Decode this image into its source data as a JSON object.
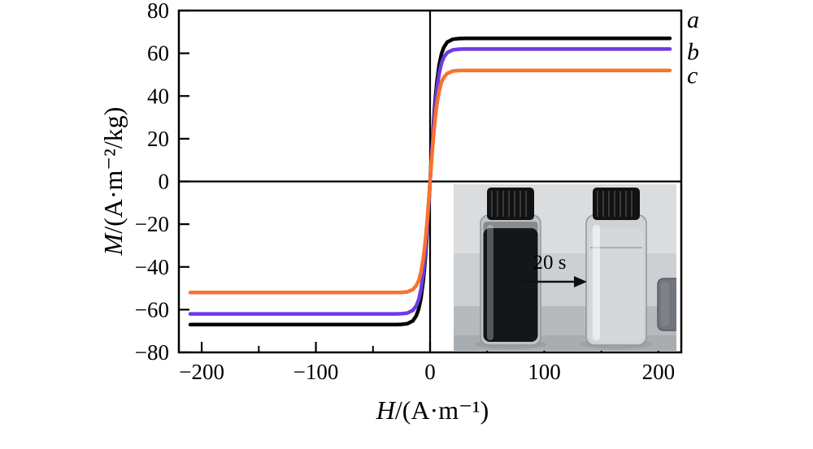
{
  "chart_data": {
    "type": "line",
    "title": "",
    "xlabel_var": "H",
    "xlabel_rest": "/(A·m⁻¹)",
    "ylabel_var": "M",
    "ylabel_rest": "/(A·m⁻²/kg)",
    "xlim": [
      -220,
      220
    ],
    "ylim": [
      -80,
      80
    ],
    "x_ticks": [
      -200,
      -100,
      0,
      100,
      200
    ],
    "x_minor_ticks": [
      -150,
      -50,
      50,
      150
    ],
    "y_ticks": [
      -80,
      -60,
      -40,
      -20,
      0,
      20,
      40,
      60,
      80
    ],
    "grid": false,
    "axis_color": "#000000",
    "x": [
      -210,
      -150,
      -100,
      -75,
      -50,
      -40,
      -30,
      -25,
      -20,
      -15,
      -12,
      -10,
      -8,
      -6,
      -5,
      -4,
      -3,
      -2,
      -1,
      0,
      1,
      2,
      3,
      4,
      5,
      6,
      8,
      10,
      12,
      15,
      20,
      25,
      30,
      40,
      50,
      75,
      100,
      150,
      210
    ],
    "series": [
      {
        "name": "a",
        "label": "a",
        "color": "#000000",
        "saturation_magnetization": 67,
        "values": [
          -67,
          -67,
          -67,
          -67,
          -67,
          -67,
          -67,
          -66.9,
          -66.6,
          -65.2,
          -62.8,
          -59.7,
          -54.6,
          -46.5,
          -41.1,
          -34.6,
          -27.1,
          -18.6,
          -9.5,
          0,
          9.5,
          18.6,
          27.1,
          34.6,
          41.1,
          46.5,
          54.6,
          59.7,
          62.8,
          65.2,
          66.6,
          66.9,
          67,
          67,
          67,
          67,
          67,
          67,
          67
        ]
      },
      {
        "name": "b",
        "label": "b",
        "color": "#6d3ae3",
        "saturation_magnetization": 62,
        "values": [
          -62,
          -62,
          -62,
          -62,
          -62,
          -62,
          -62,
          -61.9,
          -61.6,
          -60.3,
          -58.1,
          -55.3,
          -50.6,
          -43.1,
          -38,
          -32,
          -25,
          -17.3,
          -8.8,
          0,
          8.8,
          17.3,
          25,
          32,
          38,
          43.1,
          50.6,
          55.3,
          58.1,
          60.3,
          61.6,
          61.9,
          62,
          62,
          62,
          62,
          62,
          62,
          62
        ]
      },
      {
        "name": "c",
        "label": "c",
        "color": "#f9722e",
        "saturation_magnetization": 52,
        "values": [
          -52,
          -52,
          -52,
          -52,
          -52,
          -52,
          -52,
          -51.9,
          -51.7,
          -50.6,
          -48.7,
          -46.4,
          -42.4,
          -36.1,
          -31.9,
          -26.9,
          -21,
          -14.5,
          -7.4,
          0,
          7.4,
          14.5,
          21,
          26.9,
          31.9,
          36.1,
          42.4,
          46.4,
          48.7,
          50.6,
          51.7,
          51.9,
          52,
          52,
          52,
          52,
          52,
          52,
          52
        ]
      }
    ]
  },
  "inset": {
    "label": "20 s"
  }
}
